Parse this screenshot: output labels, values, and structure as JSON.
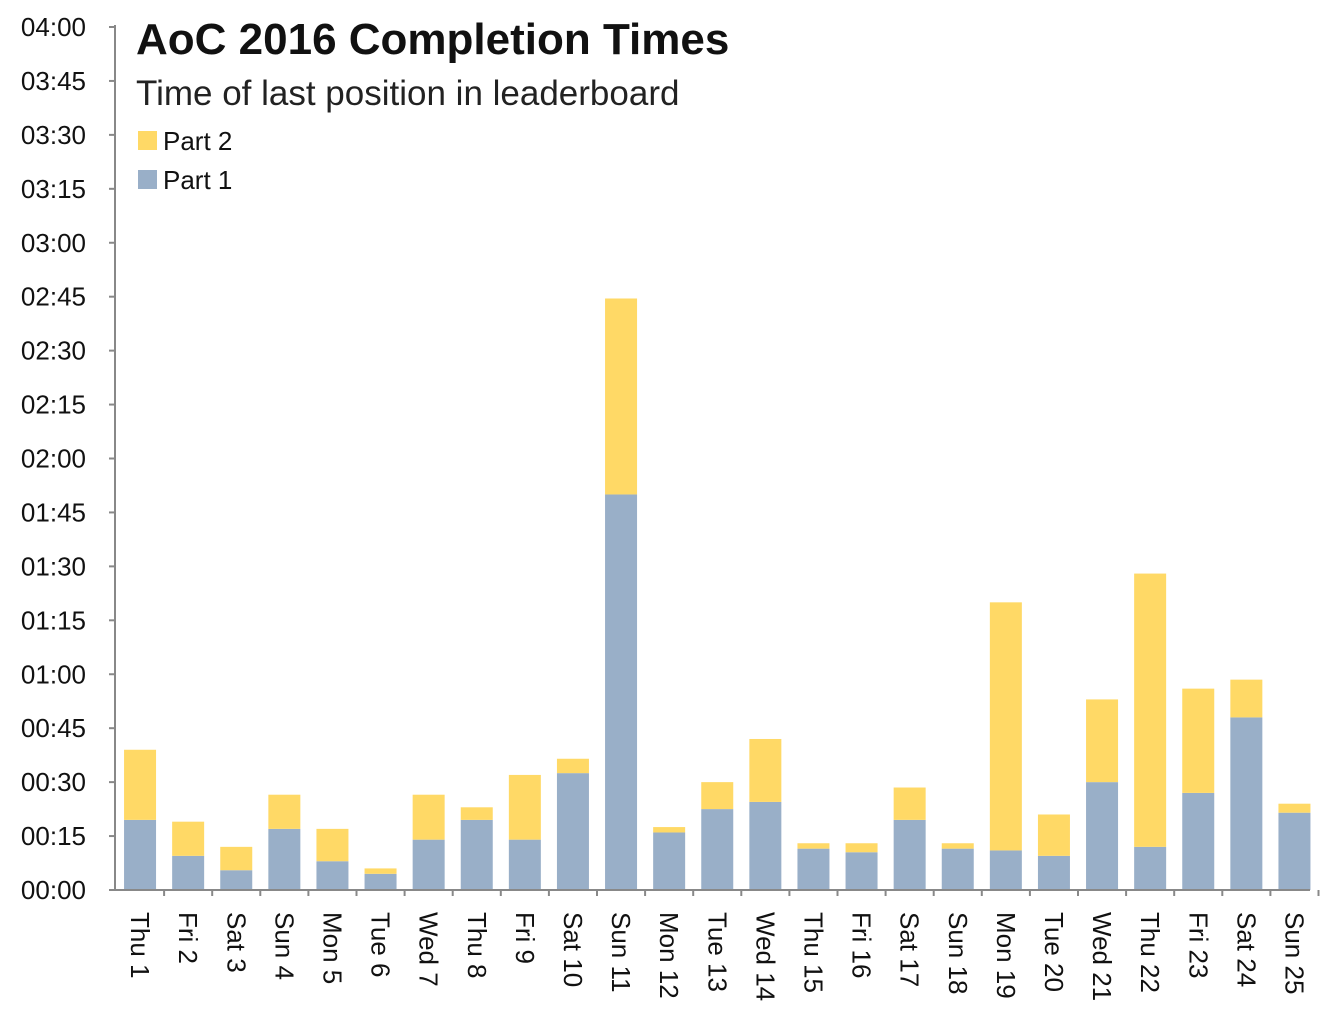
{
  "chart_data": {
    "type": "bar",
    "stacked": true,
    "title": "AoC 2016 Completion Times",
    "subtitle": "Time of last position in leaderboard",
    "xlabel": "",
    "ylabel": "",
    "y_unit": "minutes",
    "ylim": [
      0,
      240
    ],
    "yticks": [
      0,
      15,
      30,
      45,
      60,
      75,
      90,
      105,
      120,
      135,
      150,
      165,
      180,
      195,
      210,
      225,
      240
    ],
    "ytick_labels": [
      "00:00",
      "00:15",
      "00:30",
      "00:45",
      "01:00",
      "01:15",
      "01:30",
      "01:45",
      "02:00",
      "02:15",
      "02:30",
      "02:45",
      "03:00",
      "03:15",
      "03:30",
      "03:45",
      "04:00"
    ],
    "categories": [
      "Thu 1",
      "Fri 2",
      "Sat 3",
      "Sun 4",
      "Mon 5",
      "Tue 6",
      "Wed 7",
      "Thu 8",
      "Fri 9",
      "Sat 10",
      "Sun 11",
      "Mon 12",
      "Tue 13",
      "Wed 14",
      "Thu 15",
      "Fri 16",
      "Sat 17",
      "Sun 18",
      "Mon 19",
      "Tue 20",
      "Wed 21",
      "Thu 22",
      "Fri 23",
      "Sat 24",
      "Sun 25"
    ],
    "legend_position": "top-left",
    "series": [
      {
        "name": "Part 1",
        "color": "#99afc8",
        "values": [
          19.5,
          9.5,
          5.5,
          17,
          8,
          4.5,
          14,
          19.5,
          14,
          32.5,
          110,
          16,
          22.5,
          24.5,
          11.5,
          10.5,
          19.5,
          11.5,
          11,
          9.5,
          30,
          12,
          27,
          48,
          21.5
        ]
      },
      {
        "name": "Part 2",
        "color": "#ffd966",
        "values": [
          19.5,
          9.5,
          6.5,
          9.5,
          9,
          1.5,
          12.5,
          3.5,
          18,
          4,
          54.5,
          1.5,
          7.5,
          17.5,
          1.5,
          2.5,
          9,
          1.5,
          69,
          11.5,
          23,
          76,
          29,
          10.5,
          2.5
        ]
      }
    ],
    "legend_order": [
      "Part 2",
      "Part 1"
    ]
  }
}
